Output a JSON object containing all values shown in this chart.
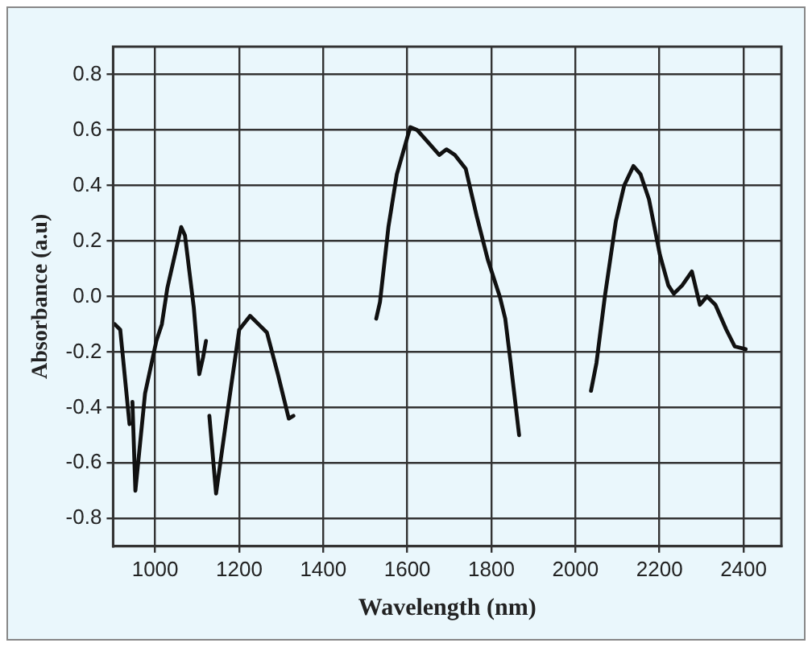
{
  "chart_data": {
    "type": "line",
    "xlabel": "Wavelength (nm)",
    "ylabel": "Absorbance (a.u)",
    "xlim": [
      900,
      2490
    ],
    "xticks": [
      1000,
      1200,
      1400,
      1600,
      1800,
      2000,
      2200,
      2400
    ],
    "ylim": [
      -0.9,
      0.9
    ],
    "yticks": [
      -0.8,
      -0.6,
      -0.4,
      -0.2,
      {
        "value": 0,
        "label": "0.0"
      },
      0.2,
      0.4,
      0.6,
      0.8
    ],
    "grid": true,
    "legend": false,
    "marker": "none",
    "line_style": "solid",
    "series": [
      {
        "color": "#111111",
        "x": [
          904,
          917,
          939
        ],
        "values": [
          -0.1,
          -0.12,
          -0.46
        ]
      },
      {
        "color": "#111111",
        "x": [
          946,
          953,
          976,
          1003,
          1016,
          1029,
          1062,
          1071,
          1092,
          1105,
          1114,
          1121
        ],
        "values": [
          -0.38,
          -0.7,
          -0.35,
          -0.16,
          -0.1,
          0.03,
          0.25,
          0.22,
          -0.04,
          -0.28,
          -0.22,
          -0.16
        ]
      },
      {
        "color": "#111111",
        "x": [
          1129,
          1145,
          1167,
          1200,
          1226,
          1246,
          1266,
          1292,
          1318,
          1329
        ],
        "values": [
          -0.43,
          -0.71,
          -0.47,
          -0.12,
          -0.07,
          -0.1,
          -0.13,
          -0.28,
          -0.44,
          -0.43
        ]
      },
      {
        "color": "#111111",
        "x": [
          1526,
          1535,
          1555,
          1575,
          1607,
          1623,
          1647,
          1676,
          1693,
          1713,
          1739,
          1765,
          1792,
          1820,
          1833,
          1846,
          1866
        ],
        "values": [
          -0.08,
          -0.02,
          0.25,
          0.44,
          0.61,
          0.6,
          0.56,
          0.51,
          0.53,
          0.51,
          0.46,
          0.29,
          0.13,
          0.0,
          -0.08,
          -0.24,
          -0.5
        ]
      },
      {
        "color": "#111111",
        "x": [
          2037,
          2050,
          2070,
          2096,
          2116,
          2138,
          2155,
          2175,
          2201,
          2221,
          2234,
          2254,
          2277,
          2296,
          2313,
          2333,
          2359,
          2379,
          2405
        ],
        "values": [
          -0.34,
          -0.24,
          0.0,
          0.27,
          0.4,
          0.47,
          0.44,
          0.35,
          0.15,
          0.04,
          0.01,
          0.04,
          0.09,
          -0.03,
          0.0,
          -0.03,
          -0.12,
          -0.18,
          -0.19
        ]
      }
    ]
  }
}
